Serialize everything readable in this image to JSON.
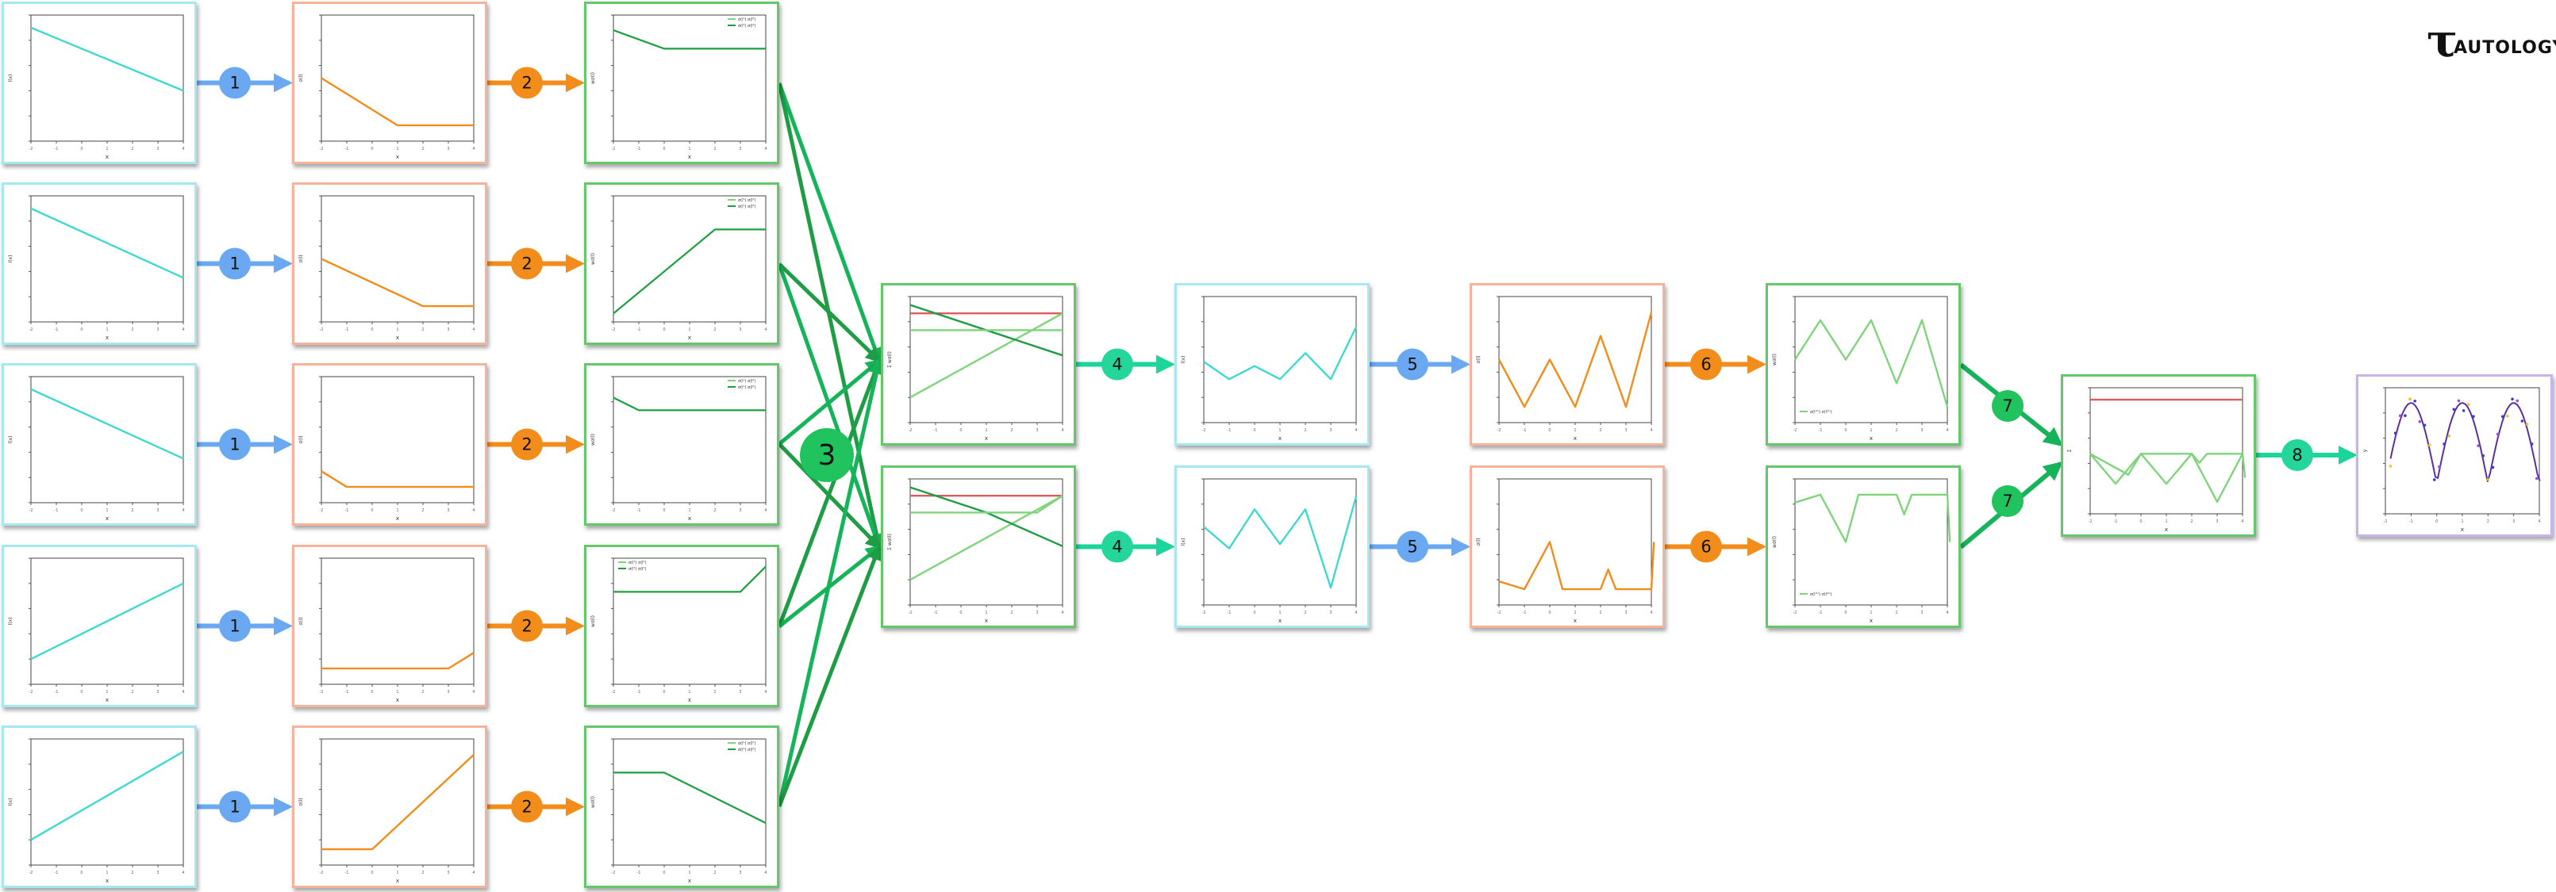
{
  "logo": {
    "mark": "τ",
    "word": "AUTOLOGY"
  },
  "colors": {
    "cyan": "#3fd9cf",
    "orange": "#f28c1a",
    "green_light": "#7fd47c",
    "green_dark": "#1f9d45",
    "red": "#e05a5a",
    "blue_step": "#6aa8f2",
    "orange_step": "#f28c1a",
    "green_step": "#20c35e",
    "teal_step": "#24d699",
    "arrow_green": "#16b45a",
    "arrow_teal": "#1ad69a"
  },
  "steps": {
    "s1": "1",
    "s2": "2",
    "s3": "3",
    "s4": "4",
    "s5": "5",
    "s6": "6",
    "s7": "7",
    "s8": "8"
  },
  "labels": {
    "xlabel": "x",
    "legend_a": "σ(l¹) σ(l²)",
    "legend_b": "σ(l¹) σ(l²)",
    "legend_c": "σ(l⁽¹⁾) σ(l⁽²⁾)"
  },
  "rows": [
    {
      "linear": [
        [
          -2,
          4
        ],
        [
          4,
          -1
        ]
      ],
      "relu": [
        [
          -2,
          3
        ],
        [
          1,
          0
        ],
        [
          4,
          0
        ]
      ],
      "green": [
        [
          -2,
          2.2
        ],
        [
          0,
          0
        ],
        [
          4,
          0
        ]
      ]
    },
    {
      "linear": [
        [
          -2,
          4
        ],
        [
          4,
          -1.5
        ]
      ],
      "relu": [
        [
          -2,
          3
        ],
        [
          2,
          0
        ],
        [
          4,
          0
        ]
      ],
      "green": [
        [
          -2,
          -10
        ],
        [
          2,
          0
        ],
        [
          4,
          0
        ]
      ]
    },
    {
      "linear": [
        [
          -2,
          4
        ],
        [
          4,
          -1.5
        ]
      ],
      "relu": [
        [
          -2,
          1
        ],
        [
          -1,
          0
        ],
        [
          4,
          0
        ]
      ],
      "green": [
        [
          -2,
          1.5
        ],
        [
          -1,
          0
        ],
        [
          4,
          0
        ]
      ]
    },
    {
      "linear": [
        [
          -2,
          -3
        ],
        [
          4,
          3
        ]
      ],
      "relu": [
        [
          -2,
          0
        ],
        [
          3,
          0
        ],
        [
          4,
          1
        ]
      ],
      "green": [
        [
          -2,
          0
        ],
        [
          3,
          0
        ],
        [
          4,
          3
        ]
      ]
    },
    {
      "linear": [
        [
          -2,
          -3
        ],
        [
          4,
          4
        ]
      ],
      "relu": [
        [
          -2,
          0
        ],
        [
          0,
          0
        ],
        [
          4,
          6
        ]
      ],
      "green": [
        [
          -2,
          0
        ],
        [
          0,
          0
        ],
        [
          4,
          -6
        ]
      ]
    }
  ],
  "combined": [
    {
      "red": [
        [
          -2,
          2
        ],
        [
          4,
          2
        ]
      ],
      "greens": [
        [
          [
            -2,
            -8
          ],
          [
            4,
            2
          ]
        ],
        [
          [
            -2,
            3
          ],
          [
            4,
            -3
          ]
        ],
        [
          [
            -2,
            0
          ],
          [
            4,
            0
          ]
        ]
      ]
    },
    {
      "red": [
        [
          -2,
          2
        ],
        [
          4,
          2
        ]
      ],
      "greens": [
        [
          [
            -2,
            -8
          ],
          [
            4,
            2
          ]
        ],
        [
          [
            -2,
            3
          ],
          [
            1,
            0
          ],
          [
            4,
            -4
          ]
        ],
        [
          [
            -2,
            0
          ],
          [
            3,
            0
          ],
          [
            4,
            2
          ]
        ]
      ]
    }
  ],
  "zigzag": [
    [
      [
        -2,
        -0.2
      ],
      [
        -1,
        -0.6
      ],
      [
        0,
        -0.3
      ],
      [
        1,
        -0.6
      ],
      [
        2,
        0
      ],
      [
        3,
        -0.6
      ],
      [
        4,
        0.6
      ]
    ],
    [
      [
        -2,
        0.2
      ],
      [
        -1,
        -0.3
      ],
      [
        0,
        0.6
      ],
      [
        1,
        -0.2
      ],
      [
        2,
        0.6
      ],
      [
        3,
        -1.2
      ],
      [
        4,
        0.9
      ]
    ]
  ],
  "abszig": [
    [
      [
        -2,
        0.6
      ],
      [
        -1,
        0
      ],
      [
        0,
        0.6
      ],
      [
        1,
        0
      ],
      [
        2,
        0.9
      ],
      [
        3,
        0
      ],
      [
        4,
        1.2
      ]
    ],
    [
      [
        -2,
        0.1
      ],
      [
        -1,
        0
      ],
      [
        0,
        0.6
      ],
      [
        0.5,
        0
      ],
      [
        2,
        0
      ],
      [
        2.3,
        0.25
      ],
      [
        2.6,
        0
      ],
      [
        4,
        0
      ],
      [
        4.1,
        0.6
      ]
    ]
  ],
  "neg": [
    [
      [
        -2,
        -0.6
      ],
      [
        -1,
        -0.1
      ],
      [
        0,
        -0.6
      ],
      [
        1,
        -0.1
      ],
      [
        2,
        -0.9
      ],
      [
        3,
        -0.1
      ],
      [
        4,
        -1.2
      ]
    ],
    [
      [
        -2,
        -0.1
      ],
      [
        -1,
        0
      ],
      [
        0,
        -0.6
      ],
      [
        0.5,
        0
      ],
      [
        2,
        0
      ],
      [
        2.3,
        -0.25
      ],
      [
        2.6,
        0
      ],
      [
        4,
        0
      ],
      [
        4.1,
        -0.6
      ]
    ]
  ],
  "final": {
    "red": [
      [
        -2,
        2.2
      ],
      [
        4,
        2.2
      ]
    ],
    "g1": [
      [
        -2,
        0.4
      ],
      [
        -1,
        -0.6
      ],
      [
        0,
        0.4
      ],
      [
        1,
        -0.6
      ],
      [
        2,
        0.4
      ],
      [
        3,
        -1.2
      ],
      [
        4,
        0.4
      ]
    ],
    "g2": [
      [
        -2,
        0.4
      ],
      [
        -0.5,
        -0.3
      ],
      [
        0,
        0.4
      ],
      [
        2,
        0.4
      ],
      [
        2.3,
        0.1
      ],
      [
        2.6,
        0.4
      ],
      [
        4,
        0.4
      ],
      [
        4.1,
        -0.4
      ]
    ]
  }
}
